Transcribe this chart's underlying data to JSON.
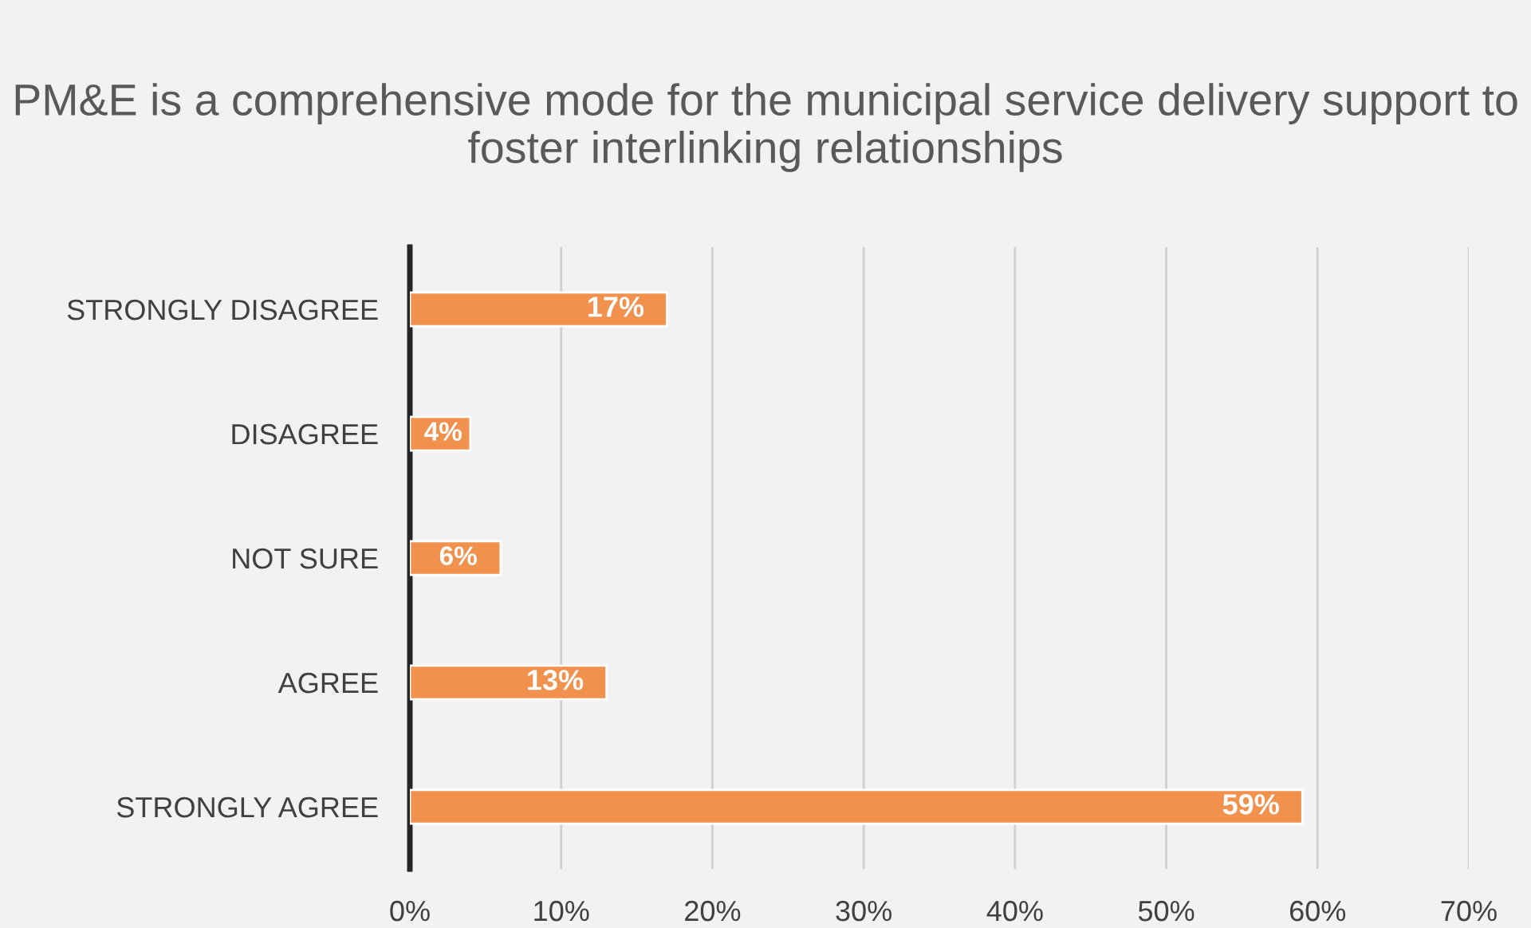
{
  "chart_data": {
    "type": "bar",
    "orientation": "horizontal",
    "title": "PM&E is a comprehensive mode for the municipal service delivery support to foster interlinking relationships",
    "categories": [
      "STRONGLY DISAGREE",
      "DISAGREE",
      "NOT SURE",
      "AGREE",
      "STRONGLY AGREE"
    ],
    "values": [
      17,
      4,
      6,
      13,
      59
    ],
    "value_labels": [
      "17%",
      "4%",
      "6%",
      "13%",
      "59%"
    ],
    "color": "#f0914d",
    "xlim": [
      0,
      70
    ],
    "xticks": [
      {
        "value": 0,
        "label": "0%"
      },
      {
        "value": 10,
        "label": "10%"
      },
      {
        "value": 20,
        "label": "20%"
      },
      {
        "value": 30,
        "label": "30%"
      },
      {
        "value": 40,
        "label": "40%"
      },
      {
        "value": 50,
        "label": "50%"
      },
      {
        "value": 60,
        "label": "60%"
      },
      {
        "value": 70,
        "label": "70%"
      }
    ],
    "grid": "x"
  }
}
